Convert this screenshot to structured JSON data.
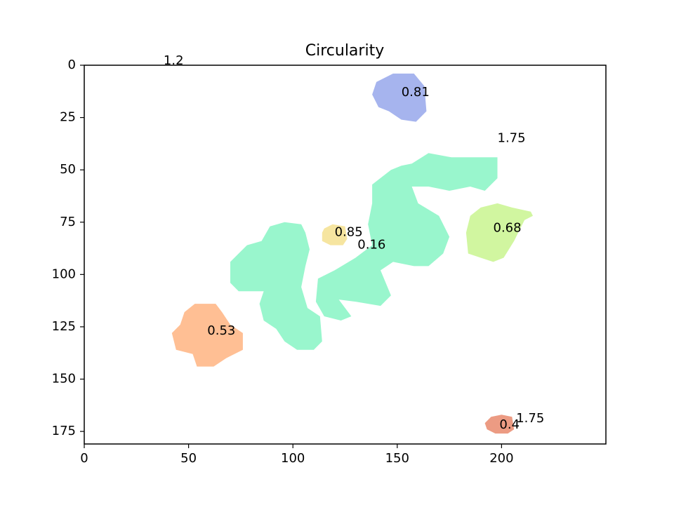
{
  "chart_data": {
    "type": "image",
    "title": "Circularity",
    "xlabel": "",
    "ylabel": "",
    "xlim": [
      0,
      250
    ],
    "ylim": [
      181,
      0
    ],
    "xticks": [
      0,
      50,
      100,
      150,
      200
    ],
    "yticks": [
      0,
      25,
      50,
      75,
      100,
      125,
      150,
      175
    ],
    "regions": [
      {
        "label": "0.81",
        "label_at": [
          152,
          13
        ],
        "color": "#a6b4ee",
        "outline": [
          [
            140,
            8
          ],
          [
            148,
            4
          ],
          [
            158,
            4
          ],
          [
            163,
            10
          ],
          [
            164,
            22
          ],
          [
            159,
            27
          ],
          [
            152,
            26
          ],
          [
            146,
            22
          ],
          [
            141,
            20
          ],
          [
            138,
            14
          ]
        ]
      },
      {
        "label": "0.16",
        "label_at": [
          131,
          86
        ],
        "color": "#99f6cd",
        "outline": [
          [
            138,
            57
          ],
          [
            147,
            50
          ],
          [
            152,
            48
          ],
          [
            157,
            47
          ],
          [
            165,
            42
          ],
          [
            176,
            44
          ],
          [
            185,
            44
          ],
          [
            198,
            44
          ],
          [
            198,
            54
          ],
          [
            192,
            60
          ],
          [
            185,
            58
          ],
          [
            175,
            60
          ],
          [
            165,
            58
          ],
          [
            157,
            58
          ],
          [
            160,
            66
          ],
          [
            170,
            72
          ],
          [
            175,
            82
          ],
          [
            172,
            90
          ],
          [
            165,
            96
          ],
          [
            158,
            96
          ],
          [
            148,
            94
          ],
          [
            142,
            98
          ],
          [
            147,
            110
          ],
          [
            142,
            115
          ],
          [
            130,
            113
          ],
          [
            122,
            112
          ],
          [
            128,
            120
          ],
          [
            123,
            122
          ],
          [
            115,
            120
          ],
          [
            111,
            113
          ],
          [
            112,
            102
          ],
          [
            120,
            98
          ],
          [
            130,
            92
          ],
          [
            138,
            86
          ],
          [
            136,
            76
          ],
          [
            138,
            66
          ]
        ]
      },
      {
        "label": "",
        "label_at": [
          95,
          100
        ],
        "color": "#99f6cd",
        "outline": [
          [
            85,
            84
          ],
          [
            89,
            77
          ],
          [
            96,
            75
          ],
          [
            104,
            76
          ],
          [
            106,
            80
          ],
          [
            108,
            88
          ],
          [
            106,
            96
          ],
          [
            104,
            106
          ],
          [
            107,
            116
          ],
          [
            113,
            120
          ],
          [
            114,
            132
          ],
          [
            110,
            136
          ],
          [
            102,
            136
          ],
          [
            96,
            132
          ],
          [
            92,
            126
          ],
          [
            86,
            122
          ],
          [
            84,
            114
          ],
          [
            86,
            108
          ],
          [
            82,
            108
          ],
          [
            74,
            108
          ],
          [
            70,
            104
          ],
          [
            70,
            94
          ],
          [
            74,
            90
          ],
          [
            78,
            86
          ]
        ]
      },
      {
        "label": "0.85",
        "label_at": [
          120,
          80
        ],
        "color": "#f6e5a0",
        "outline": [
          [
            115,
            78
          ],
          [
            119,
            76
          ],
          [
            125,
            77
          ],
          [
            126,
            83
          ],
          [
            124,
            86
          ],
          [
            118,
            86
          ],
          [
            114,
            84
          ],
          [
            114,
            80
          ]
        ]
      },
      {
        "label": "0.68",
        "label_at": [
          196,
          78
        ],
        "color": "#d1f6a0",
        "outline": [
          [
            185,
            72
          ],
          [
            190,
            68
          ],
          [
            198,
            66
          ],
          [
            205,
            68
          ],
          [
            214,
            70
          ],
          [
            215,
            72
          ],
          [
            211,
            74
          ],
          [
            206,
            84
          ],
          [
            201,
            92
          ],
          [
            196,
            94
          ],
          [
            190,
            92
          ],
          [
            184,
            90
          ],
          [
            183,
            80
          ]
        ]
      },
      {
        "label": "0.53",
        "label_at": [
          59,
          127
        ],
        "color": "#ffbf94",
        "outline": [
          [
            48,
            118
          ],
          [
            53,
            114
          ],
          [
            63,
            114
          ],
          [
            66,
            118
          ],
          [
            70,
            124
          ],
          [
            76,
            128
          ],
          [
            76,
            136
          ],
          [
            68,
            140
          ],
          [
            62,
            144
          ],
          [
            54,
            144
          ],
          [
            52,
            138
          ],
          [
            44,
            136
          ],
          [
            42,
            128
          ],
          [
            46,
            124
          ]
        ]
      },
      {
        "label": "0.4",
        "label_at": [
          199,
          172
        ],
        "color": "#ec9b83",
        "outline": [
          [
            192,
            171
          ],
          [
            195,
            168
          ],
          [
            200,
            167
          ],
          [
            205,
            168
          ],
          [
            206,
            174
          ],
          [
            203,
            176
          ],
          [
            197,
            176
          ],
          [
            193,
            174
          ]
        ]
      }
    ],
    "floating_labels": [
      {
        "text": "1.2",
        "at": [
          38,
          -2
        ]
      },
      {
        "text": "1.75",
        "at": [
          198,
          35
        ]
      },
      {
        "text": "1.75",
        "at": [
          207,
          169
        ]
      }
    ]
  }
}
